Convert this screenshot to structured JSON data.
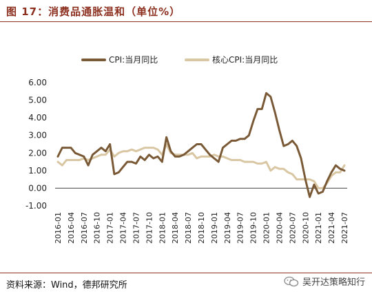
{
  "title": "图 17：消费品通胀温和（单位%）",
  "source": "资料来源：Wind，德邦研究所",
  "watermark": "吴开达策略知行",
  "colors": {
    "brand": "#8c2f1f",
    "cpi": "#7a5a36",
    "core": "#d9c6a3"
  },
  "chart_data": {
    "type": "line",
    "title": "",
    "xlabel": "",
    "ylabel": "",
    "ylim": [
      -1.0,
      6.0
    ],
    "yticks": [
      "6.00",
      "5.00",
      "4.00",
      "3.00",
      "2.00",
      "1.00",
      "0.00",
      "-1.00"
    ],
    "xticks": [
      "2016-01",
      "2016-04",
      "2016-07",
      "2016-10",
      "2017-01",
      "2017-04",
      "2017-07",
      "2017-10",
      "2018-01",
      "2018-04",
      "2018-07",
      "2018-10",
      "2019-01",
      "2019-04",
      "2019-07",
      "2019-10",
      "2020-01",
      "2020-04",
      "2020-07",
      "2020-10",
      "2021-01",
      "2021-04",
      "2021-07"
    ],
    "legend_position": "top",
    "grid": false,
    "x": [
      "2016-01",
      "2016-02",
      "2016-03",
      "2016-04",
      "2016-05",
      "2016-06",
      "2016-07",
      "2016-08",
      "2016-09",
      "2016-10",
      "2016-11",
      "2016-12",
      "2017-01",
      "2017-02",
      "2017-03",
      "2017-04",
      "2017-05",
      "2017-06",
      "2017-07",
      "2017-08",
      "2017-09",
      "2017-10",
      "2017-11",
      "2017-12",
      "2018-01",
      "2018-02",
      "2018-03",
      "2018-04",
      "2018-05",
      "2018-06",
      "2018-07",
      "2018-08",
      "2018-09",
      "2018-10",
      "2018-11",
      "2018-12",
      "2019-01",
      "2019-02",
      "2019-03",
      "2019-04",
      "2019-05",
      "2019-06",
      "2019-07",
      "2019-08",
      "2019-09",
      "2019-10",
      "2019-11",
      "2019-12",
      "2020-01",
      "2020-02",
      "2020-03",
      "2020-04",
      "2020-05",
      "2020-06",
      "2020-07",
      "2020-08",
      "2020-09",
      "2020-10",
      "2020-11",
      "2020-12",
      "2021-01",
      "2021-02",
      "2021-03",
      "2021-04",
      "2021-05",
      "2021-06",
      "2021-07"
    ],
    "series": [
      {
        "name": "CPI:当月同比",
        "color": "#7a5a36",
        "values": [
          1.8,
          2.3,
          2.3,
          2.3,
          2.0,
          1.9,
          1.8,
          1.3,
          1.9,
          2.1,
          2.3,
          2.1,
          2.5,
          0.8,
          0.9,
          1.2,
          1.5,
          1.5,
          1.4,
          1.8,
          1.6,
          1.9,
          1.7,
          1.8,
          1.5,
          2.9,
          2.1,
          1.8,
          1.8,
          1.9,
          2.1,
          2.3,
          2.5,
          2.5,
          2.2,
          1.9,
          1.7,
          1.5,
          2.3,
          2.5,
          2.7,
          2.7,
          2.8,
          2.8,
          3.0,
          3.8,
          4.5,
          4.5,
          5.4,
          5.2,
          4.3,
          3.3,
          2.4,
          2.5,
          2.7,
          2.4,
          1.7,
          0.5,
          -0.5,
          0.2,
          -0.3,
          -0.2,
          0.4,
          0.9,
          1.3,
          1.1,
          1.0
        ]
      },
      {
        "name": "核心CPI:当月同比",
        "color": "#d9c6a3",
        "values": [
          1.5,
          1.3,
          1.6,
          1.6,
          1.6,
          1.6,
          1.7,
          1.6,
          1.7,
          1.8,
          1.9,
          1.9,
          2.2,
          1.8,
          2.0,
          2.1,
          2.1,
          2.2,
          2.1,
          2.2,
          2.3,
          2.3,
          2.3,
          2.2,
          1.9,
          2.5,
          2.0,
          1.9,
          1.9,
          1.9,
          1.9,
          2.0,
          1.7,
          1.8,
          1.8,
          1.8,
          1.9,
          1.8,
          1.8,
          1.7,
          1.6,
          1.6,
          1.6,
          1.5,
          1.5,
          1.5,
          1.4,
          1.4,
          1.5,
          1.0,
          1.2,
          1.1,
          1.1,
          0.9,
          0.8,
          0.5,
          0.5,
          0.5,
          0.5,
          0.4,
          0.0,
          0.0,
          0.3,
          0.7,
          0.9,
          0.9,
          1.3
        ]
      }
    ]
  }
}
